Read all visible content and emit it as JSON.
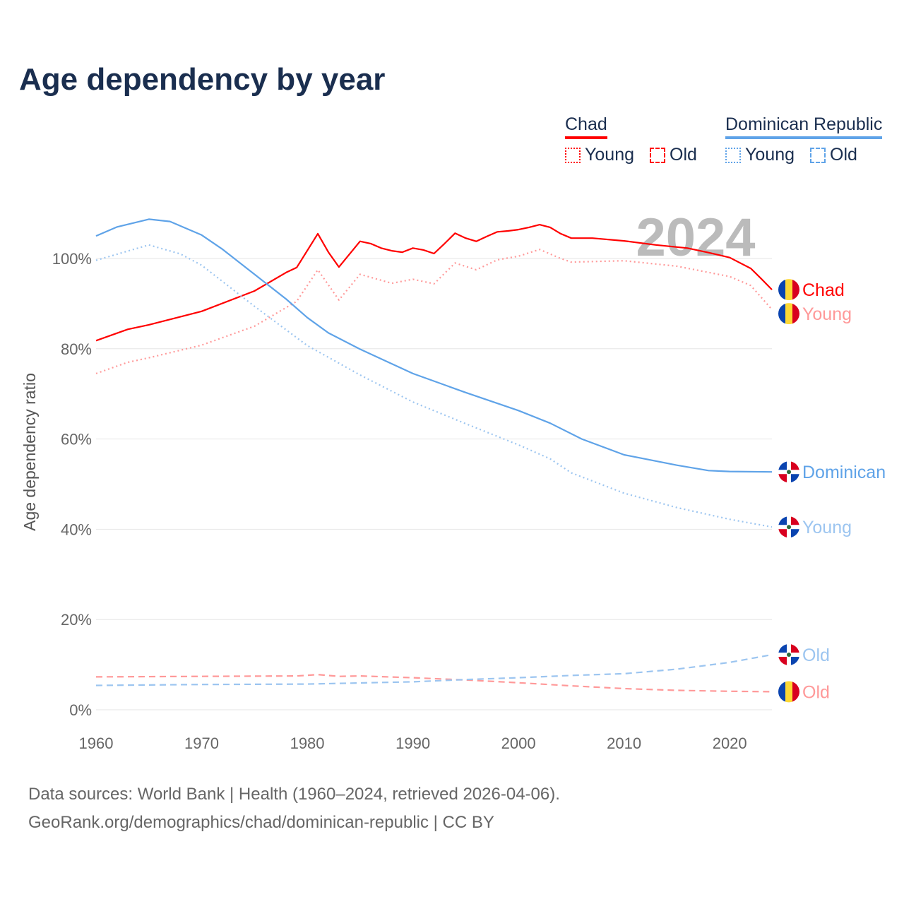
{
  "title": "Age dependency by year",
  "legend": {
    "countries": [
      {
        "name": "Chad",
        "color": "#ff0000",
        "items": [
          {
            "label": "Young",
            "style": "dotted"
          },
          {
            "label": "Old",
            "style": "dashed"
          }
        ]
      },
      {
        "name": "Dominican Republic",
        "color": "#5fa3e8",
        "items": [
          {
            "label": "Young",
            "style": "dotted"
          },
          {
            "label": "Old",
            "style": "dashed"
          }
        ]
      }
    ]
  },
  "footer": {
    "line1": "Data sources: World Bank | Health (1960–2024, retrieved 2026-04-06).",
    "line2": "GeoRank.org/demographics/chad/dominican-republic | CC BY"
  },
  "chart_data": {
    "type": "line",
    "title": "Age dependency by year",
    "current_year_label": "2024",
    "xlabel": "",
    "ylabel": "Age dependency ratio",
    "xlim": [
      1960,
      2024
    ],
    "ylim": [
      0,
      110
    ],
    "x_ticks": [
      1960,
      1970,
      1980,
      1990,
      2000,
      2010,
      2020
    ],
    "y_ticks": [
      0,
      20,
      40,
      60,
      80,
      100
    ],
    "y_tick_labels": [
      "0%",
      "20%",
      "40%",
      "60%",
      "80%",
      "100%"
    ],
    "grid": true,
    "series": [
      {
        "name": "Chad",
        "end_label": "Chad",
        "country": "chad",
        "color": "#ff0000",
        "style": "solid",
        "points": [
          [
            1960,
            81.8
          ],
          [
            1963,
            84.3
          ],
          [
            1965,
            85.3
          ],
          [
            1970,
            88.3
          ],
          [
            1975,
            92.8
          ],
          [
            1978,
            96.9
          ],
          [
            1979,
            98
          ],
          [
            1981,
            105.5
          ],
          [
            1982,
            101.4
          ],
          [
            1983,
            98.1
          ],
          [
            1985,
            103.8
          ],
          [
            1986,
            103.3
          ],
          [
            1987,
            102.3
          ],
          [
            1988,
            101.7
          ],
          [
            1989,
            101.4
          ],
          [
            1990,
            102.3
          ],
          [
            1991,
            101.9
          ],
          [
            1992,
            101.1
          ],
          [
            1993,
            103.3
          ],
          [
            1994,
            105.6
          ],
          [
            1995,
            104.5
          ],
          [
            1996,
            103.8
          ],
          [
            1997,
            104.9
          ],
          [
            1998,
            105.9
          ],
          [
            1999,
            106.1
          ],
          [
            2000,
            106.4
          ],
          [
            2001,
            106.9
          ],
          [
            2002,
            107.5
          ],
          [
            2003,
            106.9
          ],
          [
            2004,
            105.5
          ],
          [
            2005,
            104.5
          ],
          [
            2007,
            104.5
          ],
          [
            2010,
            103.9
          ],
          [
            2013,
            103
          ],
          [
            2016,
            102.3
          ],
          [
            2018,
            101.3
          ],
          [
            2020,
            100.2
          ],
          [
            2022,
            97.8
          ],
          [
            2023,
            95.5
          ],
          [
            2024,
            93.1
          ]
        ]
      },
      {
        "name": "Chad Young",
        "end_label": "Young",
        "country": "chad",
        "color": "#ff9999",
        "style": "dotted",
        "points": [
          [
            1960,
            74.5
          ],
          [
            1963,
            77
          ],
          [
            1965,
            78
          ],
          [
            1970,
            80.8
          ],
          [
            1975,
            85
          ],
          [
            1979,
            90.5
          ],
          [
            1981,
            97.5
          ],
          [
            1983,
            90.8
          ],
          [
            1985,
            96.5
          ],
          [
            1988,
            94.5
          ],
          [
            1990,
            95.4
          ],
          [
            1992,
            94.4
          ],
          [
            1994,
            99
          ],
          [
            1996,
            97.5
          ],
          [
            1998,
            99.7
          ],
          [
            2000,
            100.5
          ],
          [
            2002,
            102
          ],
          [
            2004,
            100
          ],
          [
            2005,
            99.2
          ],
          [
            2010,
            99.5
          ],
          [
            2015,
            98.3
          ],
          [
            2020,
            96
          ],
          [
            2022,
            94
          ],
          [
            2024,
            88.7
          ]
        ]
      },
      {
        "name": "Chad Old",
        "end_label": "Old",
        "country": "chad",
        "color": "#ff9999",
        "style": "dashed",
        "points": [
          [
            1960,
            7.3
          ],
          [
            1970,
            7.4
          ],
          [
            1979,
            7.5
          ],
          [
            1981,
            7.8
          ],
          [
            1983,
            7.4
          ],
          [
            1985,
            7.5
          ],
          [
            1990,
            7.1
          ],
          [
            1995,
            6.6
          ],
          [
            2000,
            6
          ],
          [
            2005,
            5.3
          ],
          [
            2010,
            4.7
          ],
          [
            2015,
            4.3
          ],
          [
            2020,
            4.1
          ],
          [
            2024,
            4.0
          ]
        ]
      },
      {
        "name": "Dominican Republic",
        "end_label": "Dominican",
        "country": "dr",
        "color": "#5fa3e8",
        "style": "solid",
        "points": [
          [
            1960,
            105
          ],
          [
            1962,
            107
          ],
          [
            1965,
            108.7
          ],
          [
            1967,
            108.2
          ],
          [
            1970,
            105.2
          ],
          [
            1972,
            102
          ],
          [
            1975,
            96.5
          ],
          [
            1978,
            91
          ],
          [
            1980,
            86.9
          ],
          [
            1982,
            83.5
          ],
          [
            1985,
            79.9
          ],
          [
            1990,
            74.5
          ],
          [
            1995,
            70.3
          ],
          [
            2000,
            66.3
          ],
          [
            2003,
            63.5
          ],
          [
            2006,
            60
          ],
          [
            2010,
            56.5
          ],
          [
            2015,
            54.2
          ],
          [
            2018,
            53
          ],
          [
            2020,
            52.8
          ],
          [
            2024,
            52.7
          ]
        ]
      },
      {
        "name": "Dominican Republic Young",
        "end_label": "Young",
        "country": "dr",
        "color": "#9cc5f0",
        "style": "dotted",
        "points": [
          [
            1960,
            99.6
          ],
          [
            1965,
            103
          ],
          [
            1968,
            101
          ],
          [
            1970,
            98.5
          ],
          [
            1975,
            89.4
          ],
          [
            1980,
            80.7
          ],
          [
            1985,
            74.2
          ],
          [
            1990,
            68.2
          ],
          [
            1995,
            63.4
          ],
          [
            2000,
            58.7
          ],
          [
            2003,
            55.6
          ],
          [
            2005,
            52.5
          ],
          [
            2010,
            48
          ],
          [
            2015,
            44.8
          ],
          [
            2020,
            42.2
          ],
          [
            2024,
            40.5
          ]
        ]
      },
      {
        "name": "Dominican Republic Old",
        "end_label": "Old",
        "country": "dr",
        "color": "#9cc5f0",
        "style": "dashed",
        "points": [
          [
            1960,
            5.4
          ],
          [
            1970,
            5.6
          ],
          [
            1980,
            5.7
          ],
          [
            1990,
            6.2
          ],
          [
            1995,
            6.7
          ],
          [
            2000,
            7.1
          ],
          [
            2005,
            7.6
          ],
          [
            2010,
            8
          ],
          [
            2015,
            9
          ],
          [
            2020,
            10.5
          ],
          [
            2024,
            12.2
          ]
        ]
      }
    ]
  }
}
